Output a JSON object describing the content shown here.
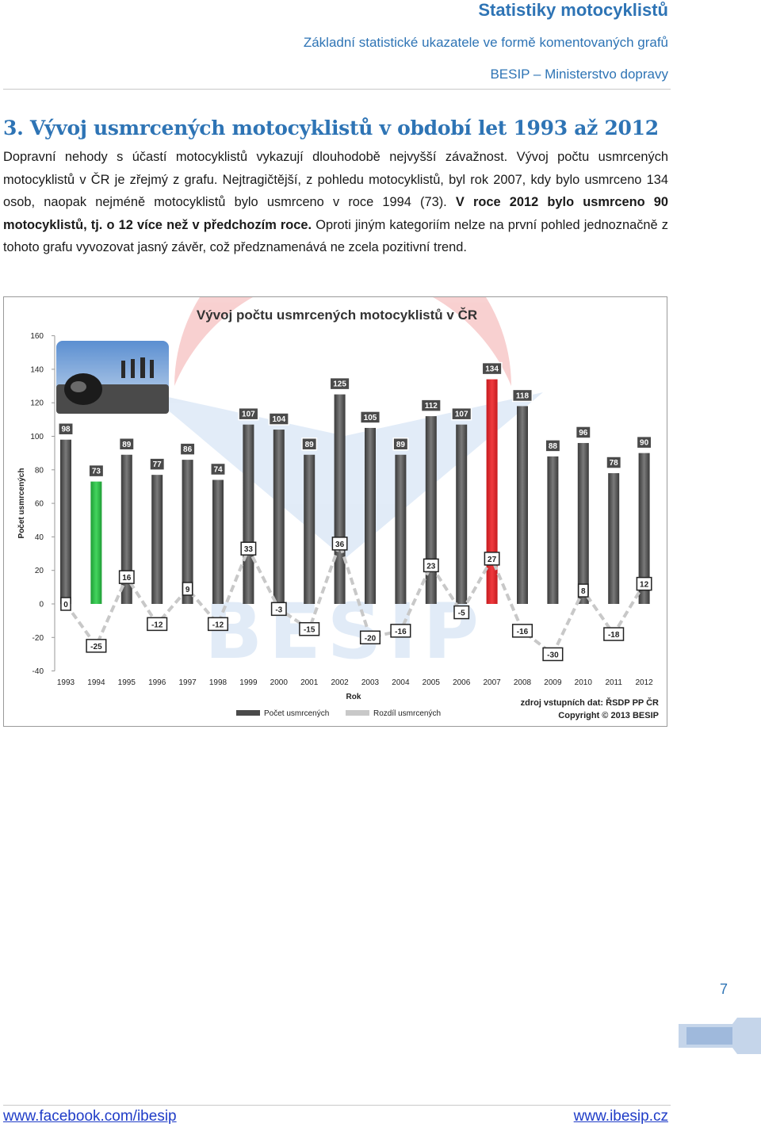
{
  "header": {
    "title": "Statistiky motocyklistů",
    "subtitle": "Základní statistické ukazatele ve formě komentovaných grafů",
    "org": "BESIP – Ministerstvo dopravy"
  },
  "section": {
    "title": "3. Vývoj usmrcených motocyklistů v období let 1993 až 2012",
    "p1": "Dopravní nehody s účastí motocyklistů vykazují dlouhodobě nejvyšší závažnost. Vývoj počtu usmrcených motocyklistů v ČR je zřejmý z grafu. Nejtragičtější, z pohledu motocyklistů, byl rok 2007, kdy bylo usmrceno 134 osob, naopak nejméně motocyklistů bylo usmrceno v roce 1994 (73). ",
    "p2_bold": "V roce 2012 bylo usmrceno 90 motocyklistů, tj. o 12 více než v předchozím roce.",
    "p3": " Oproti jiným kategoriím nelze na první pohled jednoznačně z tohoto grafu vyvozovat jasný závěr, což předznamenává ne zcela pozitivní trend."
  },
  "chart_data": {
    "type": "bar",
    "title": "Vývoj počtu usmrcených motocyklistů v ČR",
    "xlabel": "Rok",
    "ylabel": "Počet usmrcených",
    "ylim": [
      -40,
      160
    ],
    "yticks": [
      -40,
      -20,
      0,
      20,
      40,
      60,
      80,
      100,
      120,
      140,
      160
    ],
    "categories": [
      "1993",
      "1994",
      "1995",
      "1996",
      "1997",
      "1998",
      "1999",
      "2000",
      "2001",
      "2002",
      "2003",
      "2004",
      "2005",
      "2006",
      "2007",
      "2008",
      "2009",
      "2010",
      "2011",
      "2012"
    ],
    "series": [
      {
        "name": "Počet usmrcených",
        "values": [
          98,
          73,
          89,
          77,
          86,
          74,
          107,
          104,
          89,
          125,
          105,
          89,
          112,
          107,
          134,
          118,
          88,
          96,
          78,
          90
        ]
      },
      {
        "name": "Rozdíl usmrcených",
        "values": [
          0,
          -25,
          16,
          -12,
          9,
          -12,
          33,
          -3,
          -15,
          36,
          -20,
          -16,
          23,
          -5,
          27,
          -16,
          -30,
          8,
          -18,
          12
        ]
      }
    ],
    "highlight": {
      "max_index": 14,
      "min_index": 1,
      "max_color": "#e8262b",
      "min_color": "#2fc24a",
      "bar_color": "#555555",
      "line_color": "#c8c8c8"
    },
    "legend_position": "bottom",
    "source": "zdroj vstupních dat: ŘSDP PP ČR",
    "copyright": "Copyright © 2013  BESIP",
    "watermark": "BESIP"
  },
  "footer": {
    "page": "7",
    "left_link": "www.facebook.com/ibesip",
    "right_link": "www.ibesip.cz"
  }
}
